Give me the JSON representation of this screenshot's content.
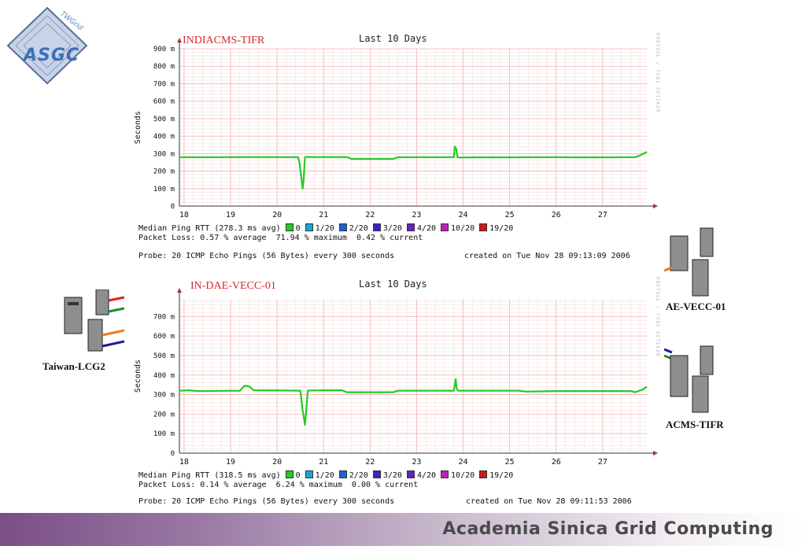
{
  "logo": {
    "text": "ASGC",
    "sub": "TWGrid"
  },
  "nodes": {
    "left": "Taiwan-LCG2",
    "right_top": "AE-VECC-01",
    "right_bottom": "ACMS-TIFR"
  },
  "footer": {
    "text": "Academia Sinica Grid Computing"
  },
  "colors": {
    "line": "#22cc22",
    "grid": "#f1b5b5",
    "axis": "#333333",
    "title": "#d8292f"
  },
  "legend_colors": [
    "#22cc22",
    "#18a6d6",
    "#1f5fd8",
    "#3a22c9",
    "#6a1fc0",
    "#c21cc0",
    "#d01a1a"
  ],
  "legend_levels": [
    "0",
    "1/20",
    "2/20",
    "3/20",
    "4/20",
    "10/20",
    "19/20"
  ],
  "panels": [
    {
      "title": "INDIACMS-TIFR",
      "period": "Last 10 Days",
      "ylabel": "Seconds",
      "rrd": "RRDTOOL / TOBI OETIKER",
      "median": "Median Ping RTT (278.3 ms avg)",
      "loss": "Packet Loss: 0.57 % average  71.94 % maximum  0.42 % current",
      "probe": "Probe: 20 ICMP Echo Pings (56 Bytes) every 300 seconds",
      "created": "created on Tue Nov 28 09:13:09 2006",
      "chart_data": {
        "type": "line",
        "title": "Last 10 Days",
        "ylabel": "Seconds",
        "ylim": [
          0,
          900
        ],
        "xlim": [
          17.9,
          27.95
        ],
        "yticks": [
          0,
          100,
          200,
          300,
          400,
          500,
          600,
          700,
          800,
          900
        ],
        "ytick_labels": [
          "0",
          "100 m",
          "200 m",
          "300 m",
          "400 m",
          "500 m",
          "600 m",
          "700 m",
          "800 m",
          "900 m"
        ],
        "xticks": [
          18,
          19,
          20,
          21,
          22,
          23,
          24,
          25,
          26,
          27
        ],
        "grid": true,
        "series": [
          {
            "x": [
              17.9,
              18.8,
              19.6,
              20.45,
              20.48,
              20.55,
              20.57,
              20.6,
              20.65,
              20.68,
              21.0,
              21.5,
              21.6,
              22.0,
              22.5,
              22.6,
              23.0,
              23.8,
              23.82,
              23.85,
              23.88,
              23.9,
              24.3,
              25.0,
              25.5,
              26.0,
              26.5,
              27.0,
              27.5,
              27.7,
              27.8,
              27.95
            ],
            "y": [
              280,
              280,
              281,
              280,
              250,
              100,
              150,
              280,
              282,
              281,
              281,
              281,
              270,
              270,
              270,
              280,
              280,
              280,
              340,
              330,
              280,
              278,
              279,
              279,
              280,
              280,
              279,
              279,
              280,
              280,
              290,
              310
            ]
          }
        ]
      }
    },
    {
      "title": "IN-DAE-VECC-01",
      "period": "Last 10 Days",
      "ylabel": "Seconds",
      "rrd": "RRDTOOL / TOBI OETIKER",
      "median": "Median Ping RTT (318.5 ms avg)",
      "loss": "Packet Loss: 0.14 % average  6.24 % maximum  0.00 % current",
      "probe": "Probe: 20 ICMP Echo Pings (56 Bytes) every 300 seconds",
      "created": "created on Tue Nov 28 09:11:53 2006",
      "chart_data": {
        "type": "line",
        "title": "Last 10 Days",
        "ylabel": "Seconds",
        "ylim": [
          0,
          790
        ],
        "xlim": [
          17.9,
          27.95
        ],
        "yticks": [
          0,
          100,
          200,
          300,
          400,
          500,
          600,
          700
        ],
        "ytick_labels": [
          "0",
          "100 m",
          "200 m",
          "300 m",
          "400 m",
          "500 m",
          "600 m",
          "700 m"
        ],
        "xticks": [
          18,
          19,
          20,
          21,
          22,
          23,
          24,
          25,
          26,
          27
        ],
        "grid": true,
        "series": [
          {
            "x": [
              17.9,
              18.1,
              18.3,
              19.2,
              19.3,
              19.4,
              19.5,
              20.2,
              20.5,
              20.55,
              20.6,
              20.62,
              20.66,
              20.7,
              21.0,
              21.4,
              21.5,
              22.0,
              22.5,
              22.6,
              23.0,
              23.8,
              23.84,
              23.86,
              23.9,
              24.5,
              25.2,
              25.35,
              26.0,
              26.5,
              27.0,
              27.6,
              27.7,
              27.85,
              27.95
            ],
            "y": [
              320,
              322,
              318,
              320,
              345,
              342,
              322,
              321,
              320,
              220,
              145,
              200,
              320,
              321,
              322,
              322,
              312,
              312,
              312,
              320,
              320,
              320,
              380,
              330,
              320,
              320,
              320,
              315,
              318,
              318,
              318,
              318,
              312,
              325,
              340
            ]
          }
        ]
      }
    }
  ]
}
